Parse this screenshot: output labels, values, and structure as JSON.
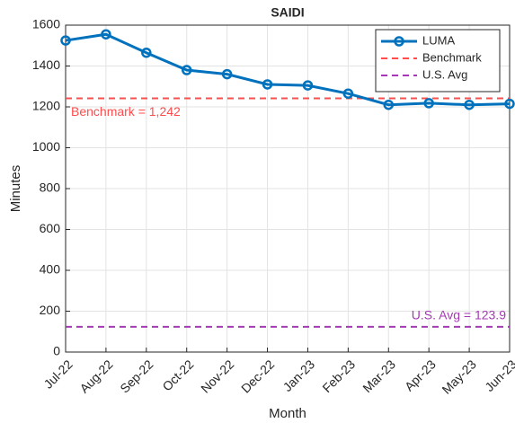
{
  "chart_data": {
    "type": "line",
    "title": "SAIDI",
    "xlabel": "Month",
    "ylabel": "Minutes",
    "categories": [
      "Jul-22",
      "Aug-22",
      "Sep-22",
      "Oct-22",
      "Nov-22",
      "Dec-22",
      "Jan-23",
      "Feb-23",
      "Mar-23",
      "Apr-23",
      "May-23",
      "Jun-23"
    ],
    "series": [
      {
        "name": "LUMA",
        "color": "#0072bd",
        "values": [
          1525,
          1555,
          1465,
          1380,
          1360,
          1310,
          1305,
          1265,
          1210,
          1218,
          1210,
          1215
        ]
      }
    ],
    "reference_lines": [
      {
        "name": "Benchmark",
        "color": "#ff4d4d",
        "value": 1242,
        "label": "Benchmark = 1,242"
      },
      {
        "name": "U.S. Avg",
        "color": "#a538b5",
        "value": 123.9,
        "label": "U.S. Avg = 123.9"
      }
    ],
    "ylim": [
      0,
      1600
    ],
    "yticks": [
      0,
      200,
      400,
      600,
      800,
      1000,
      1200,
      1400,
      1600
    ],
    "grid": true,
    "legend": "upper right"
  }
}
